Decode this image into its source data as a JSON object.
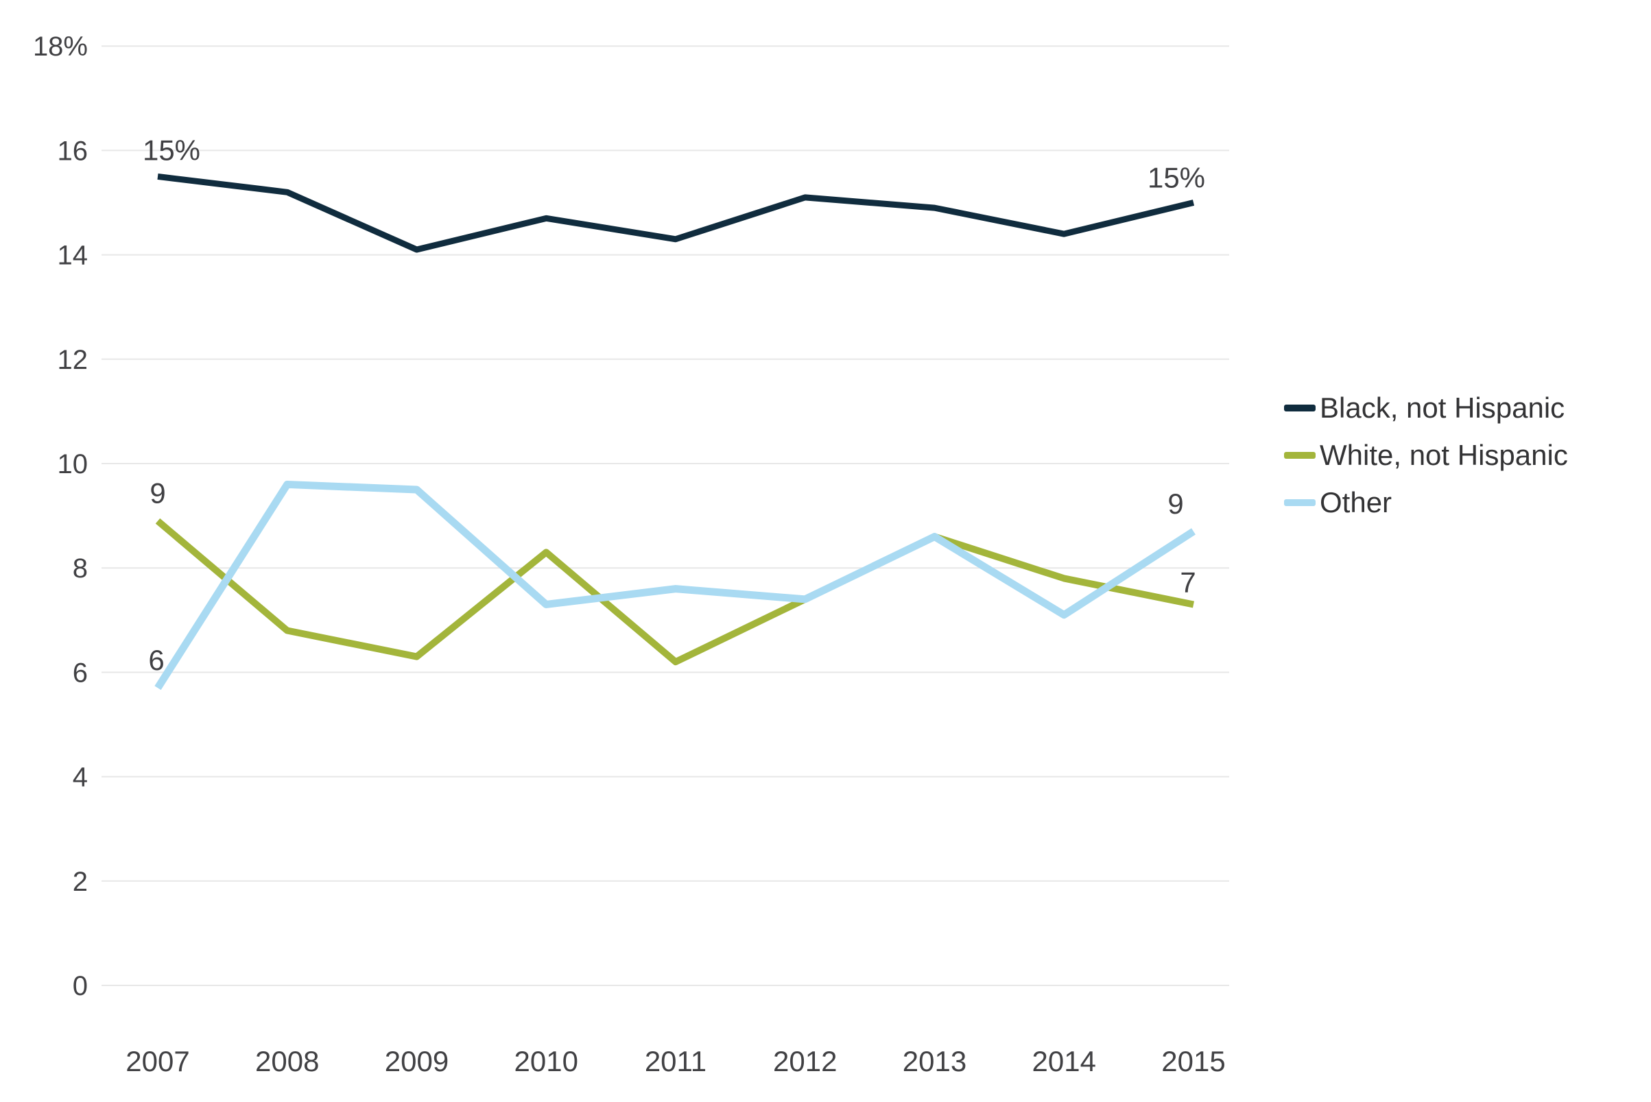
{
  "chart_data": {
    "type": "line",
    "title": "",
    "xlabel": "",
    "ylabel": "",
    "grid": true,
    "legend_position": "right",
    "ylim": [
      0,
      18
    ],
    "x_categories": [
      "2007",
      "2008",
      "2009",
      "2010",
      "2011",
      "2012",
      "2013",
      "2014",
      "2015"
    ],
    "yticks": [
      {
        "value": 0,
        "label": "0"
      },
      {
        "value": 2,
        "label": "2"
      },
      {
        "value": 4,
        "label": "4"
      },
      {
        "value": 6,
        "label": "6"
      },
      {
        "value": 8,
        "label": "8"
      },
      {
        "value": 10,
        "label": "10"
      },
      {
        "value": 12,
        "label": "12"
      },
      {
        "value": 14,
        "label": "14"
      },
      {
        "value": 16,
        "label": "16"
      },
      {
        "value": 18,
        "label": "18%"
      }
    ],
    "series": [
      {
        "name": "Black, not Hispanic",
        "color": "#102c3e",
        "values": [
          15.5,
          15.2,
          14.1,
          14.7,
          14.3,
          15.1,
          14.9,
          14.4,
          15.0
        ],
        "start_label": "15%",
        "end_label": "15%"
      },
      {
        "name": "White, not Hispanic",
        "color": "#a3b53b",
        "values": [
          8.9,
          6.8,
          6.3,
          8.3,
          6.2,
          7.4,
          8.6,
          7.8,
          7.3
        ],
        "start_label": "9",
        "end_label": "7"
      },
      {
        "name": "Other",
        "color": "#a9daf2",
        "values": [
          5.7,
          9.6,
          9.5,
          7.3,
          7.6,
          7.4,
          8.6,
          7.1,
          8.7
        ],
        "start_label": "6",
        "end_label": "9"
      }
    ],
    "colors": {
      "grid": "#e7e7e7",
      "axis_text": "#414144",
      "label_text": "#404043"
    }
  }
}
